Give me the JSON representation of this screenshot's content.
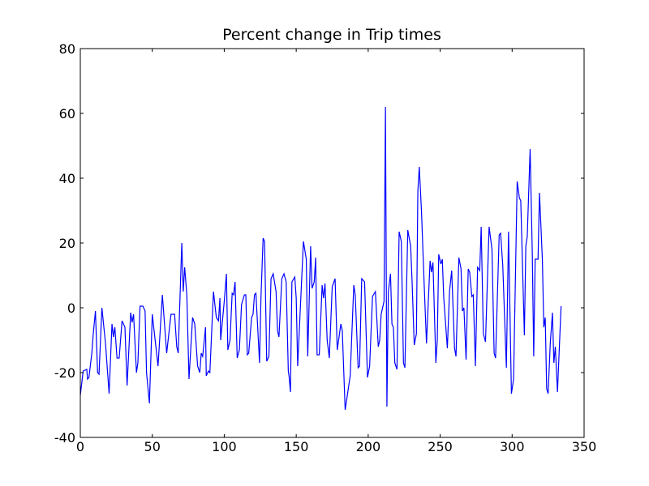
{
  "chart_data": {
    "type": "line",
    "title": "Percent change in Trip times",
    "x": [
      0,
      2,
      4.5,
      5,
      6,
      8,
      9,
      10.5,
      12,
      13,
      15,
      17.5,
      20,
      22,
      23,
      24,
      25.5,
      27,
      29,
      31,
      32.5,
      35,
      36,
      37,
      39,
      40,
      41.5,
      43.5,
      45,
      46,
      48,
      50,
      52,
      54,
      57,
      60,
      63,
      65.5,
      67,
      68,
      70.5,
      71.5,
      72.5,
      74,
      75.5,
      78,
      79.5,
      81.5,
      83,
      84,
      85,
      87,
      87.5,
      89,
      90,
      92.5,
      94.5,
      96,
      97,
      97.5,
      100,
      101.5,
      102.5,
      104,
      105.5,
      106.5,
      107.5,
      109,
      110.5,
      112,
      114,
      115,
      116,
      117,
      119,
      120,
      121,
      122,
      124.5,
      125.5,
      127,
      128,
      129.5,
      131,
      132.5,
      134,
      136,
      137,
      138,
      140,
      141.5,
      143,
      144.5,
      145,
      146,
      147,
      149,
      150,
      151,
      153.5,
      155,
      157,
      158,
      160,
      161,
      162.5,
      163.5,
      164.5,
      166,
      168,
      169,
      170,
      171.5,
      173,
      175,
      177,
      178.5,
      181,
      182,
      184,
      187.5,
      190,
      191,
      193,
      194,
      195.5,
      197.5,
      199.5,
      201,
      203,
      205,
      207,
      208,
      209,
      211,
      212,
      213,
      214,
      215.5,
      216.5,
      217.5,
      218.5,
      220,
      221.5,
      223,
      224.5,
      225.5,
      227.5,
      229.5,
      230.5,
      232,
      233.5,
      234.5,
      235.5,
      237,
      239,
      240.5,
      243,
      244,
      245,
      247,
      248,
      249,
      250.5,
      251.5,
      252.5,
      255,
      256.5,
      258,
      260,
      261,
      263,
      264.5,
      265.5,
      266.5,
      268,
      269.5,
      270.5,
      272,
      273,
      274.5,
      276,
      277.5,
      278.5,
      280,
      281.5,
      284,
      286,
      287.5,
      288.5,
      291,
      292,
      293.5,
      296,
      297.5,
      299.5,
      301,
      303.5,
      305,
      306,
      308.5,
      309.5,
      310.5,
      312.5,
      314,
      315,
      316,
      318,
      319,
      321,
      322,
      323,
      324,
      325,
      326.5,
      328,
      329,
      330,
      331.5,
      334
    ],
    "values": [
      -27,
      -19.5,
      -19,
      -22,
      -21.5,
      -14,
      -8,
      -1,
      -20,
      -20.5,
      0,
      -11,
      -26.5,
      -5,
      -9,
      -6,
      -15.5,
      -15.5,
      -4,
      -6,
      -24,
      -1.5,
      -4.5,
      -2,
      -20,
      -17,
      0.5,
      0.5,
      -1,
      -20,
      -29.5,
      -2,
      -10,
      -18,
      4,
      -14,
      -2,
      -2,
      -12,
      -14,
      20,
      5,
      12.5,
      4,
      -22,
      -3,
      -5,
      -18,
      -20,
      -14,
      -15,
      -6,
      -21,
      -19.5,
      -20,
      5,
      -3,
      -4,
      3,
      -10,
      2,
      10.5,
      -13,
      -10,
      4.5,
      4,
      8,
      -15.5,
      -13,
      1,
      4,
      4,
      -14.5,
      -14,
      -3,
      -2,
      4,
      4.5,
      -17,
      3,
      21.5,
      20.5,
      -16.5,
      -15,
      9,
      10.5,
      5,
      -7,
      -9,
      9,
      10.5,
      8,
      -19.5,
      -21,
      -26,
      8,
      9.5,
      3,
      -18,
      6,
      20.5,
      15,
      -15,
      19,
      6,
      8,
      15.5,
      -14.5,
      -14.5,
      7,
      3,
      7.5,
      -10,
      -15.5,
      6.5,
      9,
      -13,
      -5,
      -7,
      -31.5,
      -21,
      7,
      4,
      -18.5,
      -18,
      9,
      8,
      -21.5,
      -18,
      3.5,
      5,
      -12,
      -10,
      -2,
      2,
      62,
      -30.5,
      5,
      10.5,
      -5,
      -6,
      -17,
      -19,
      23.5,
      20.5,
      -17,
      -18.5,
      24,
      19,
      8,
      -11.5,
      -8,
      36,
      43.5,
      30,
      6,
      -11,
      14.5,
      11,
      14,
      -17,
      -10,
      16.5,
      13.5,
      15,
      3,
      -12.5,
      5,
      11.5,
      -12.5,
      -15,
      15.5,
      12,
      -1,
      0,
      -16,
      12,
      11,
      3.5,
      4,
      -18,
      12.5,
      11.5,
      25,
      -8,
      -10.5,
      25,
      18,
      -14,
      -15.5,
      22.5,
      23,
      13,
      -18.5,
      23.5,
      -26.5,
      -22,
      39,
      34,
      33,
      -8.5,
      19,
      22,
      49,
      17,
      -15,
      15,
      15,
      35.5,
      15,
      -6,
      -3,
      -25,
      -26.5,
      -11,
      -1.5,
      -17,
      -12,
      -26,
      0.5
    ],
    "color": "#0000ff",
    "xlim": [
      0,
      350
    ],
    "xticks": [
      0,
      50,
      100,
      150,
      200,
      250,
      300,
      350
    ],
    "ylim": [
      -40,
      80
    ],
    "yticks": [
      -40,
      -20,
      0,
      20,
      40,
      60,
      80
    ]
  }
}
